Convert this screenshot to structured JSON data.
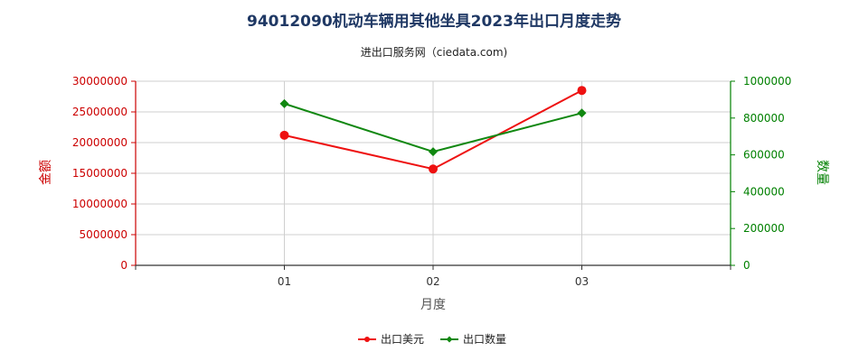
{
  "chart_data": {
    "type": "line",
    "title": "94012090机动车辆用其他坐具2023年出口月度走势",
    "subtitle": "进出口服务网（ciedata.com)",
    "xlabel": "月度",
    "ylabel_left": "金额",
    "ylabel_right": "数量",
    "categories": [
      "01",
      "02",
      "03"
    ],
    "y_left": {
      "min": 0,
      "max": 30000000,
      "ticks": [
        "0",
        "5000000",
        "10000000",
        "15000000",
        "20000000",
        "25000000",
        "30000000"
      ]
    },
    "y_right": {
      "min": 0,
      "max": 1000000,
      "ticks": [
        "0",
        "200000",
        "400000",
        "600000",
        "800000",
        "1000000"
      ]
    },
    "series": [
      {
        "name": "出口美元",
        "axis": "left",
        "color": "#ee1111",
        "marker": "circle",
        "values": [
          21200000,
          15700000,
          28500000
        ]
      },
      {
        "name": "出口数量",
        "axis": "right",
        "color": "#118811",
        "marker": "diamond",
        "values": [
          878000,
          617000,
          827000
        ]
      }
    ],
    "colors": {
      "left_axis": "#cc0000",
      "right_axis": "#008000",
      "title": "#1f3864"
    },
    "grid": true,
    "legend_position": "bottom"
  }
}
